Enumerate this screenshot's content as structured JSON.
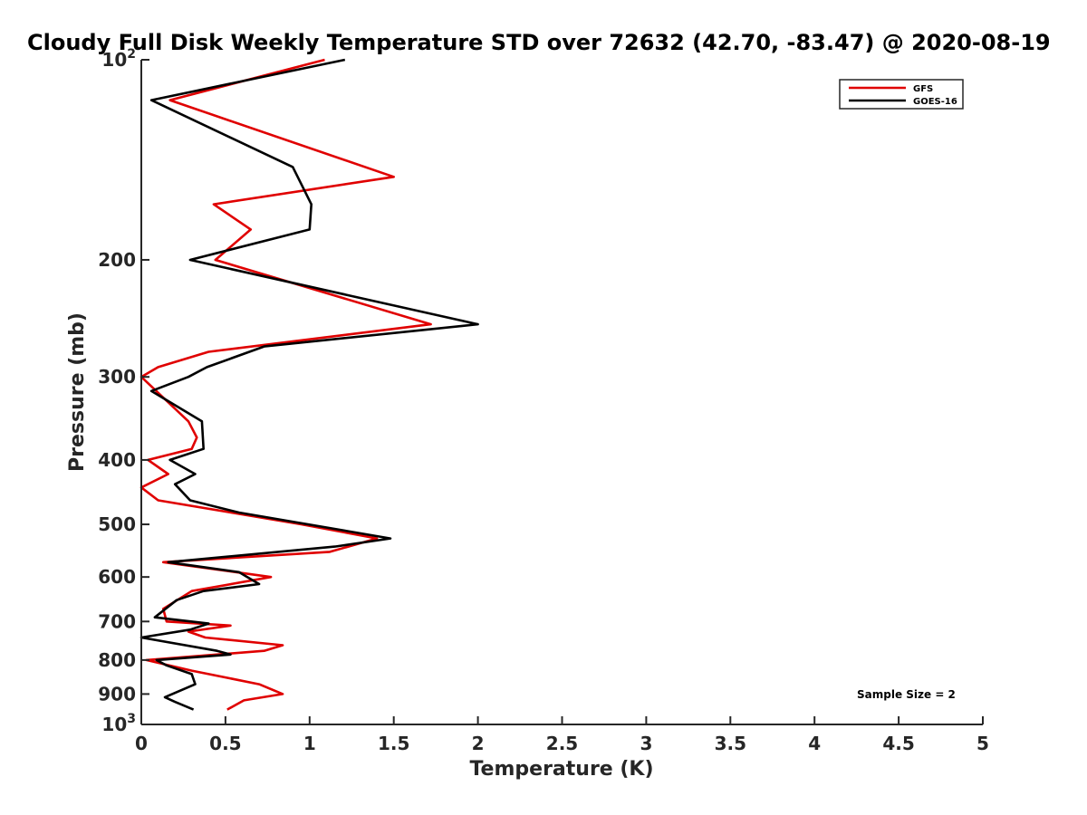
{
  "chart_data": {
    "type": "line",
    "title": "Cloudy Full Disk Weekly Temperature STD over 72632 (42.70, -83.47) @ 2020-08-19",
    "xlabel": "Temperature (K)",
    "ylabel": "Pressure (mb)",
    "xlim": [
      0,
      5
    ],
    "ylim": [
      100,
      1000
    ],
    "y_scale": "log",
    "y_reversed": true,
    "grid": false,
    "legend_position": "top-right",
    "x_ticks": [
      "0",
      "0.5",
      "1",
      "1.5",
      "2",
      "2.5",
      "3",
      "3.5",
      "4",
      "4.5",
      "5"
    ],
    "y_tick_labels": [
      {
        "value": 100,
        "base": "10",
        "exp": "2"
      },
      {
        "value": 200,
        "base": "200",
        "exp": ""
      },
      {
        "value": 300,
        "base": "300",
        "exp": ""
      },
      {
        "value": 400,
        "base": "400",
        "exp": ""
      },
      {
        "value": 500,
        "base": "500",
        "exp": ""
      },
      {
        "value": 600,
        "base": "600",
        "exp": ""
      },
      {
        "value": 700,
        "base": "700",
        "exp": ""
      },
      {
        "value": 800,
        "base": "800",
        "exp": ""
      },
      {
        "value": 900,
        "base": "900",
        "exp": ""
      },
      {
        "value": 1000,
        "base": "10",
        "exp": "3"
      }
    ],
    "series": [
      {
        "name": "GFS",
        "color": "#e00000",
        "points": [
          [
            1.09,
            100
          ],
          [
            0.17,
            115
          ],
          [
            1.5,
            150
          ],
          [
            0.43,
            165
          ],
          [
            0.65,
            180
          ],
          [
            0.44,
            200
          ],
          [
            1.72,
            250
          ],
          [
            0.4,
            275
          ],
          [
            0.1,
            290
          ],
          [
            0.0,
            300
          ],
          [
            0.28,
            350
          ],
          [
            0.33,
            370
          ],
          [
            0.3,
            385
          ],
          [
            0.04,
            400
          ],
          [
            0.16,
            420
          ],
          [
            0.0,
            440
          ],
          [
            0.1,
            460
          ],
          [
            0.95,
            500
          ],
          [
            1.4,
            525
          ],
          [
            1.12,
            550
          ],
          [
            0.13,
            570
          ],
          [
            0.77,
            600
          ],
          [
            0.3,
            630
          ],
          [
            0.13,
            670
          ],
          [
            0.15,
            700
          ],
          [
            0.53,
            710
          ],
          [
            0.28,
            725
          ],
          [
            0.38,
            740
          ],
          [
            0.84,
            760
          ],
          [
            0.73,
            775
          ],
          [
            0.03,
            800
          ],
          [
            0.3,
            830
          ],
          [
            0.7,
            870
          ],
          [
            0.84,
            900
          ],
          [
            0.61,
            920
          ],
          [
            0.51,
            950
          ]
        ]
      },
      {
        "name": "GOES-16",
        "color": "#000000",
        "points": [
          [
            1.21,
            100
          ],
          [
            0.06,
            115
          ],
          [
            0.9,
            145
          ],
          [
            1.01,
            165
          ],
          [
            1.0,
            180
          ],
          [
            0.29,
            200
          ],
          [
            2.0,
            250
          ],
          [
            0.73,
            270
          ],
          [
            0.39,
            290
          ],
          [
            0.28,
            300
          ],
          [
            0.06,
            315
          ],
          [
            0.36,
            350
          ],
          [
            0.37,
            385
          ],
          [
            0.17,
            400
          ],
          [
            0.32,
            420
          ],
          [
            0.2,
            435
          ],
          [
            0.29,
            460
          ],
          [
            0.58,
            480
          ],
          [
            1.48,
            525
          ],
          [
            1.15,
            540
          ],
          [
            0.16,
            570
          ],
          [
            0.58,
            590
          ],
          [
            0.7,
            615
          ],
          [
            0.37,
            630
          ],
          [
            0.21,
            650
          ],
          [
            0.08,
            690
          ],
          [
            0.4,
            705
          ],
          [
            0.29,
            720
          ],
          [
            0.0,
            740
          ],
          [
            0.45,
            775
          ],
          [
            0.53,
            785
          ],
          [
            0.09,
            800
          ],
          [
            0.15,
            815
          ],
          [
            0.3,
            840
          ],
          [
            0.32,
            870
          ],
          [
            0.14,
            910
          ],
          [
            0.2,
            925
          ],
          [
            0.31,
            950
          ]
        ]
      }
    ],
    "annotation": "Sample Size = 2"
  }
}
